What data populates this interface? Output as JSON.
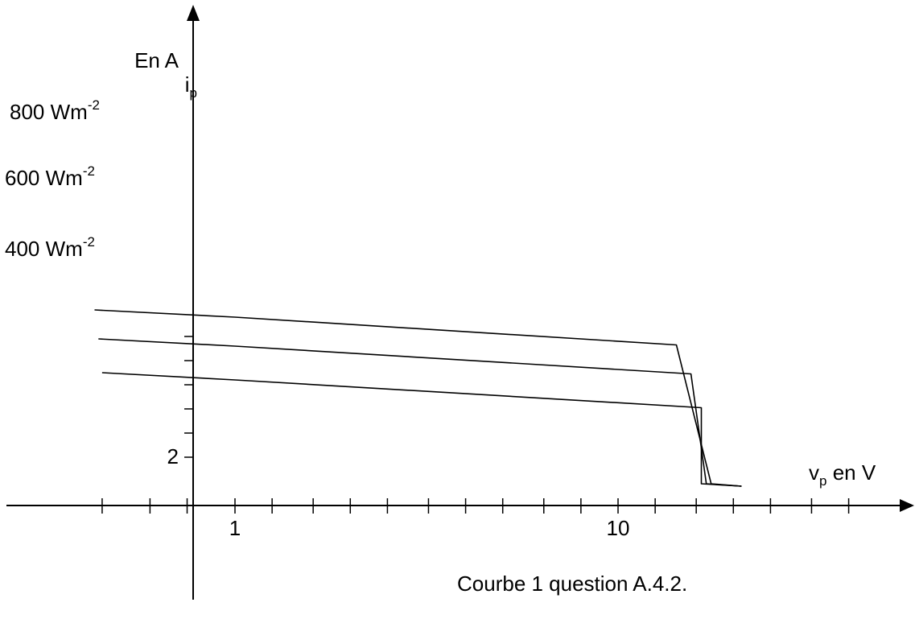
{
  "chart_data": {
    "type": "line",
    "x_scale": "log",
    "grid": false,
    "xlabel": {
      "main": "v",
      "sub": "p",
      "rest": " en V"
    },
    "ylabel": {
      "main": "i",
      "sub": "p",
      "line2": "En A"
    },
    "x_tick_labels": [
      {
        "value": 1,
        "text": "1"
      },
      {
        "value": 10,
        "text": "10"
      }
    ],
    "y_tick_labels": [
      {
        "value": 2,
        "text": "2"
      }
    ],
    "x_minor_ticks": [
      0.45,
      0.6,
      0.75,
      1,
      1.25,
      1.6,
      2.0,
      2.5,
      3.2,
      4.0,
      5.0,
      6.4,
      8.0,
      10,
      12.5,
      16,
      20,
      25,
      32,
      40
    ],
    "y_ticks": [
      2,
      3,
      4,
      5,
      6,
      7
    ],
    "series": [
      {
        "name": "800",
        "unit": " Wm",
        "exp": "-2",
        "points": [
          [
            0.43,
            8.1
          ],
          [
            1.0,
            7.8
          ],
          [
            14.2,
            6.65
          ],
          [
            17.5,
            0.9
          ],
          [
            21.0,
            0.8
          ]
        ]
      },
      {
        "name": "600",
        "unit": " Wm",
        "exp": "-2",
        "points": [
          [
            0.44,
            6.9
          ],
          [
            1.0,
            6.6
          ],
          [
            15.5,
            5.45
          ],
          [
            17.0,
            0.9
          ],
          [
            21.0,
            0.8
          ]
        ]
      },
      {
        "name": "400",
        "unit": " Wm",
        "exp": "-2",
        "points": [
          [
            0.45,
            5.5
          ],
          [
            1.0,
            5.2
          ],
          [
            16.5,
            4.05
          ],
          [
            16.5,
            0.9
          ],
          [
            21.0,
            0.8
          ]
        ]
      }
    ]
  },
  "caption": "Courbe 1 question A.4.2."
}
